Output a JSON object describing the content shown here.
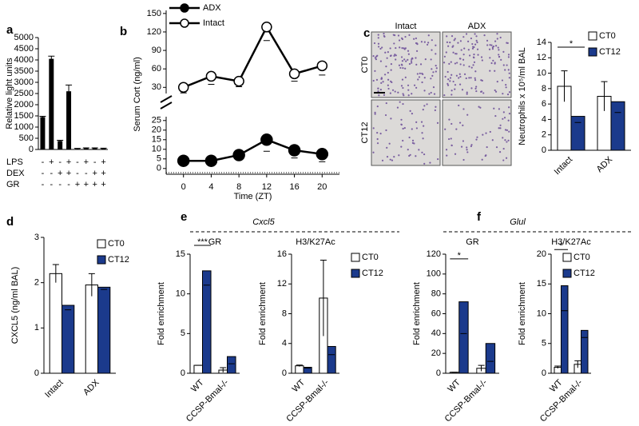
{
  "chart_data": [
    {
      "panel": "a",
      "type": "bar",
      "ylabel": "Relative light units",
      "values": [
        1450,
        4050,
        380,
        2600,
        30,
        50,
        50,
        40
      ],
      "errors": [
        30,
        120,
        30,
        280,
        20,
        20,
        20,
        20
      ],
      "color": "#000000",
      "ylim": [
        0,
        5000
      ],
      "yticks": [
        0,
        500,
        1000,
        1500,
        2000,
        2500,
        3000,
        3500,
        4000,
        4500,
        5000
      ],
      "conditions": [
        {
          "label": "LPS",
          "signs": [
            "-",
            "+",
            "-",
            "+",
            "-",
            "+",
            "-",
            "+"
          ]
        },
        {
          "label": "DEX",
          "signs": [
            "-",
            "-",
            "+",
            "+",
            "-",
            "-",
            "+",
            "+"
          ]
        },
        {
          "label": "GR",
          "signs": [
            "-",
            "-",
            "-",
            "-",
            "+",
            "+",
            "+",
            "+"
          ]
        }
      ]
    },
    {
      "panel": "b",
      "type": "line",
      "xlabel": "Time (ZT)",
      "ylabel": "Serum Cort (ng/ml)",
      "x": [
        0,
        4,
        8,
        12,
        16,
        20
      ],
      "xlim": [
        -2.5,
        22.5
      ],
      "xticks": [
        0,
        4,
        8,
        12,
        16,
        20
      ],
      "ylim": [
        -3,
        27
      ],
      "yticks": [
        0,
        5,
        10,
        15,
        20,
        25
      ],
      "y2lim": [
        20,
        155
      ],
      "y2ticks": [
        30,
        60,
        90,
        120,
        150
      ],
      "series": [
        {
          "name": "ADX",
          "color": "#000000",
          "marker": "filled",
          "values": [
            4,
            4,
            7,
            15,
            9.5,
            7.5
          ],
          "errors": [
            0.8,
            0.8,
            1.8,
            6,
            4,
            4
          ]
        },
        {
          "name": "Intact",
          "color": "#000000",
          "marker": "open",
          "axis": "y2",
          "values": [
            30,
            48,
            40,
            128,
            52,
            65
          ],
          "errors": [
            9,
            13,
            9,
            22,
            12,
            15
          ]
        }
      ]
    },
    {
      "panel": "c",
      "type": "bar",
      "image_columns": [
        "Intact",
        "ADX"
      ],
      "image_rows": [
        "CT0",
        "CT12"
      ],
      "ylabel": "Neutrophils x 10⁵/ml BAL",
      "categories": [
        "Intact",
        "ADX"
      ],
      "series": [
        {
          "name": "CT0",
          "color": "#ffffff",
          "values": [
            8.3,
            7.0
          ],
          "errors": [
            2.0,
            1.9
          ]
        },
        {
          "name": "CT12",
          "color": "#1b3a8c",
          "values": [
            4.4,
            6.3
          ],
          "errors": [
            0.8,
            1.4
          ]
        }
      ],
      "ylim": [
        0,
        14
      ],
      "yticks": [
        0,
        2,
        4,
        6,
        8,
        10,
        12,
        14
      ],
      "annotation": "*",
      "legend": "top-right"
    },
    {
      "panel": "d",
      "type": "bar",
      "ylabel": "CXCL5 (ng/ml BAL)",
      "categories": [
        "Intact",
        "ADX"
      ],
      "series": [
        {
          "name": "CT0",
          "color": "#ffffff",
          "values": [
            2.2,
            1.95
          ],
          "errors": [
            0.2,
            0.25
          ]
        },
        {
          "name": "CT12",
          "color": "#1b3a8c",
          "values": [
            1.5,
            1.9
          ],
          "errors": [
            0.1,
            0.05
          ]
        }
      ],
      "ylim": [
        0,
        3
      ],
      "yticks": [
        0,
        1,
        2,
        3
      ],
      "legend": "top-right"
    },
    {
      "panel": "e",
      "group_title": "Cxcl5",
      "subtitle": "GR",
      "type": "bar",
      "ylabel": "Fold enrichment",
      "categories": [
        "WT",
        "CCSP-Bmal-/-"
      ],
      "series": [
        {
          "name": "CT0",
          "color": "#ffffff",
          "values": [
            1,
            0.4
          ],
          "errors": [
            0,
            0.3
          ]
        },
        {
          "name": "CT12",
          "color": "#1b3a8c",
          "values": [
            12.9,
            2.1
          ],
          "errors": [
            1.8,
            0.9
          ]
        }
      ],
      "ylim": [
        0,
        15
      ],
      "yticks": [
        0,
        5,
        10,
        15
      ],
      "annotation": "***"
    },
    {
      "subtitle": "H3/K27Ac",
      "type": "bar",
      "ylabel": "Fold enrichment",
      "categories": [
        "WT",
        "CCSP-Bmal-/-"
      ],
      "series": [
        {
          "name": "CT0",
          "color": "#ffffff",
          "values": [
            1,
            10.1
          ],
          "errors": [
            0.1,
            5.1
          ]
        },
        {
          "name": "CT12",
          "color": "#1b3a8c",
          "values": [
            0.8,
            3.6
          ],
          "errors": [
            0.1,
            1.1
          ]
        }
      ],
      "ylim": [
        0,
        16
      ],
      "yticks": [
        0,
        4,
        8,
        12,
        16
      ],
      "legend": "top-right"
    },
    {
      "panel": "f",
      "group_title": "Glul",
      "subtitle": "GR",
      "type": "bar",
      "ylabel": "Fold enrichment",
      "categories": [
        "WT",
        "CCSP-Bmal-/-"
      ],
      "series": [
        {
          "name": "CT0",
          "color": "#ffffff",
          "values": [
            1,
            5
          ],
          "errors": [
            0,
            3
          ]
        },
        {
          "name": "CT12",
          "color": "#1b3a8c",
          "values": [
            72,
            30
          ],
          "errors": [
            32,
            18
          ]
        }
      ],
      "ylim": [
        0,
        120
      ],
      "yticks": [
        0,
        20,
        40,
        60,
        80,
        100,
        120
      ],
      "annotation": "*"
    },
    {
      "subtitle": "H3/K27Ac",
      "type": "bar",
      "ylabel": "Fold enrichment",
      "categories": [
        "WT",
        "CCSP-Bmal-/-"
      ],
      "series": [
        {
          "name": "CT0",
          "color": "#ffffff",
          "values": [
            1,
            1.5
          ],
          "errors": [
            0.2,
            0.6
          ]
        },
        {
          "name": "CT12",
          "color": "#1b3a8c",
          "values": [
            14.7,
            7.2
          ],
          "errors": [
            4.2,
            1.2
          ]
        }
      ],
      "ylim": [
        0,
        20
      ],
      "yticks": [
        0,
        5,
        10,
        15,
        20
      ],
      "annotation": "*",
      "legend": "top-right"
    }
  ]
}
